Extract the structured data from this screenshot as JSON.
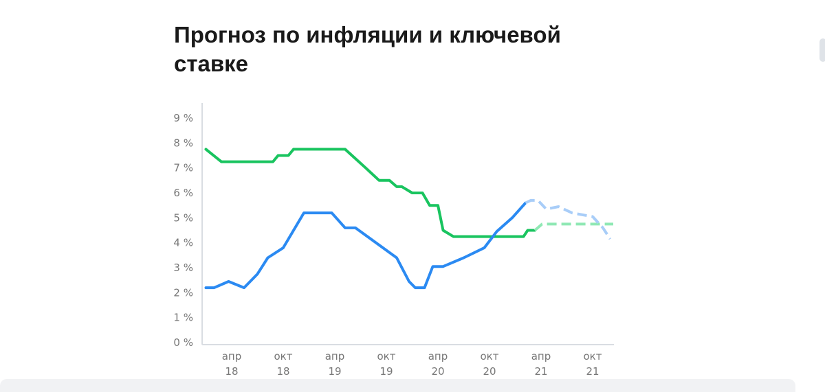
{
  "title": "Прогноз по инфляции и ключевой ставке",
  "chart_data": {
    "type": "line",
    "title": "Прогноз по инфляции и ключевой ставке",
    "xlabel": "",
    "ylabel": "",
    "ylim": [
      0,
      9
    ],
    "y_ticks": [
      "0 %",
      "1 %",
      "2 %",
      "3 %",
      "4 %",
      "5 %",
      "6 %",
      "7 %",
      "8 %",
      "9 %"
    ],
    "x_ticks": [
      {
        "line1": "апр",
        "line2": "18",
        "x": 2018.25
      },
      {
        "line1": "окт",
        "line2": "18",
        "x": 2018.75
      },
      {
        "line1": "апр",
        "line2": "19",
        "x": 2019.25
      },
      {
        "line1": "окт",
        "line2": "19",
        "x": 2019.75
      },
      {
        "line1": "апр",
        "line2": "20",
        "x": 2020.25
      },
      {
        "line1": "окт",
        "line2": "20",
        "x": 2020.75
      },
      {
        "line1": "апр",
        "line2": "21",
        "x": 2021.25
      },
      {
        "line1": "окт",
        "line2": "21",
        "x": 2021.75
      }
    ],
    "grid": false,
    "series": [
      {
        "color": "#19c45f",
        "style": "solid",
        "points": [
          [
            2018.0,
            7.75
          ],
          [
            2018.15,
            7.25
          ],
          [
            2018.65,
            7.25
          ],
          [
            2018.7,
            7.5
          ],
          [
            2018.8,
            7.5
          ],
          [
            2018.85,
            7.75
          ],
          [
            2019.35,
            7.75
          ],
          [
            2019.55,
            7.0
          ],
          [
            2019.68,
            6.5
          ],
          [
            2019.78,
            6.5
          ],
          [
            2019.85,
            6.25
          ],
          [
            2019.9,
            6.25
          ],
          [
            2020.0,
            6.0
          ],
          [
            2020.1,
            6.0
          ],
          [
            2020.17,
            5.5
          ],
          [
            2020.25,
            5.5
          ],
          [
            2020.3,
            4.5
          ],
          [
            2020.4,
            4.25
          ],
          [
            2021.08,
            4.25
          ],
          [
            2021.12,
            4.5
          ],
          [
            2021.19,
            4.5
          ]
        ]
      },
      {
        "color": "#8fe8b4",
        "style": "dashed",
        "points": [
          [
            2021.19,
            4.5
          ],
          [
            2021.26,
            4.75
          ],
          [
            2021.95,
            4.75
          ]
        ]
      },
      {
        "color": "#2b8af2",
        "style": "solid",
        "points": [
          [
            2018.0,
            2.2
          ],
          [
            2018.08,
            2.2
          ],
          [
            2018.22,
            2.45
          ],
          [
            2018.37,
            2.2
          ],
          [
            2018.5,
            2.75
          ],
          [
            2018.6,
            3.4
          ],
          [
            2018.75,
            3.8
          ],
          [
            2018.95,
            5.2
          ],
          [
            2019.22,
            5.2
          ],
          [
            2019.35,
            4.6
          ],
          [
            2019.45,
            4.6
          ],
          [
            2019.7,
            3.85
          ],
          [
            2019.85,
            3.4
          ],
          [
            2019.97,
            2.45
          ],
          [
            2020.03,
            2.2
          ],
          [
            2020.12,
            2.2
          ],
          [
            2020.2,
            3.05
          ],
          [
            2020.3,
            3.05
          ],
          [
            2020.5,
            3.4
          ],
          [
            2020.7,
            3.8
          ],
          [
            2020.82,
            4.45
          ],
          [
            2020.97,
            5.0
          ],
          [
            2021.1,
            5.6
          ]
        ]
      },
      {
        "color": "#a8cdf8",
        "style": "dashed",
        "points": [
          [
            2021.1,
            5.6
          ],
          [
            2021.15,
            5.7
          ],
          [
            2021.22,
            5.7
          ],
          [
            2021.3,
            5.35
          ],
          [
            2021.42,
            5.45
          ],
          [
            2021.55,
            5.2
          ],
          [
            2021.68,
            5.1
          ],
          [
            2021.75,
            5.05
          ],
          [
            2021.85,
            4.6
          ],
          [
            2021.92,
            4.15
          ]
        ]
      }
    ]
  }
}
